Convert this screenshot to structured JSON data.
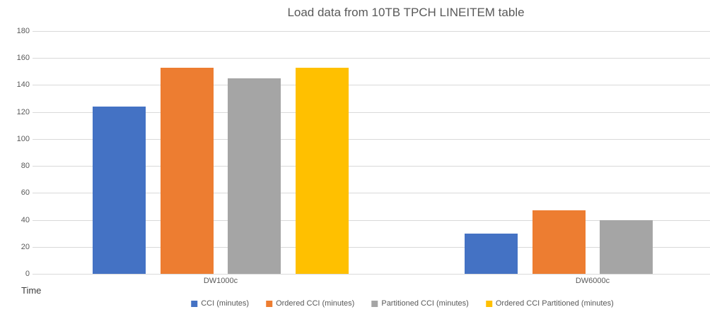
{
  "title": "Load data from 10TB TPCH LINEITEM table",
  "chart_data": {
    "type": "bar",
    "title": "Load data from 10TB TPCH LINEITEM table",
    "categories": [
      "DW1000c",
      "DW6000c"
    ],
    "series": [
      {
        "name": "CCI (minutes)",
        "color": "#4472C4",
        "values": [
          124,
          30
        ]
      },
      {
        "name": "Ordered CCI (minutes)",
        "color": "#ED7D31",
        "values": [
          153,
          47
        ]
      },
      {
        "name": "Partitioned CCI (minutes)",
        "color": "#A5A5A5",
        "values": [
          145,
          40
        ]
      },
      {
        "name": "Ordered CCI Partitioned (minutes)",
        "color": "#FFC000",
        "values": [
          153,
          null
        ]
      }
    ],
    "ylabel": "Time",
    "ylim": [
      0,
      180
    ],
    "ytick_step": 20,
    "ytick_labels": [
      "0",
      "20",
      "40",
      "60",
      "80",
      "100",
      "120",
      "140",
      "160",
      "180"
    ],
    "grid": "horizontal",
    "gridline_color": "#D9D9D9",
    "text_color": "#595959",
    "legend_position": "bottom"
  }
}
